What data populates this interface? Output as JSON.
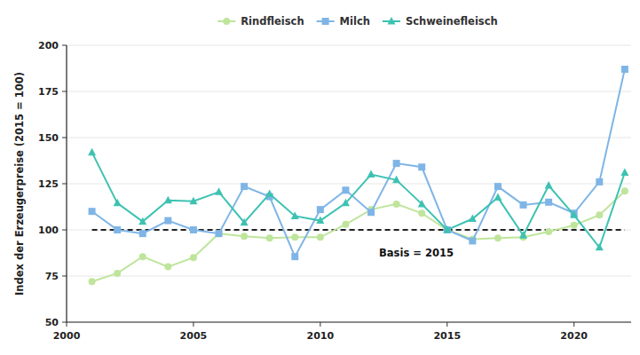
{
  "chart_data": {
    "type": "line",
    "y_label": "Index der Erzeugerpreise (2015 = 100)",
    "x": [
      2001,
      2002,
      2003,
      2004,
      2005,
      2006,
      2007,
      2008,
      2009,
      2010,
      2011,
      2012,
      2013,
      2014,
      2015,
      2016,
      2017,
      2018,
      2019,
      2020,
      2021,
      2022
    ],
    "series": [
      {
        "name": "Rindfleisch",
        "color": "#bfe59c",
        "marker": "circle",
        "values": [
          72,
          76.5,
          85.5,
          80,
          85,
          98,
          96.5,
          95.5,
          96,
          96,
          103,
          111,
          114,
          109,
          100,
          95,
          95.5,
          96,
          99,
          102.5,
          108,
          121
        ]
      },
      {
        "name": "Milch",
        "color": "#7fb5e6",
        "marker": "square",
        "values": [
          110,
          100,
          98,
          105,
          100,
          98,
          123.5,
          118,
          85.5,
          111,
          121.5,
          109.5,
          136,
          134,
          100,
          94,
          123.5,
          113.5,
          115,
          109,
          126,
          187
        ]
      },
      {
        "name": "Schweinefleisch",
        "color": "#3dc2b2",
        "marker": "triangle",
        "values": [
          142,
          114.5,
          104.5,
          116,
          115.5,
          120.5,
          104,
          119.5,
          107.5,
          105,
          114.5,
          130,
          127,
          114,
          100,
          106,
          117.5,
          97,
          124,
          108,
          90.5,
          131
        ]
      }
    ],
    "reference_line": {
      "value": 100,
      "label": "Basis = 2015"
    },
    "xlim": [
      2000,
      2022.25
    ],
    "ylim": [
      50,
      200
    ],
    "xticks": [
      2000,
      2005,
      2010,
      2015,
      2020
    ],
    "yticks": [
      50,
      75,
      100,
      125,
      150,
      175,
      200
    ],
    "grid": true,
    "legend": "top"
  }
}
